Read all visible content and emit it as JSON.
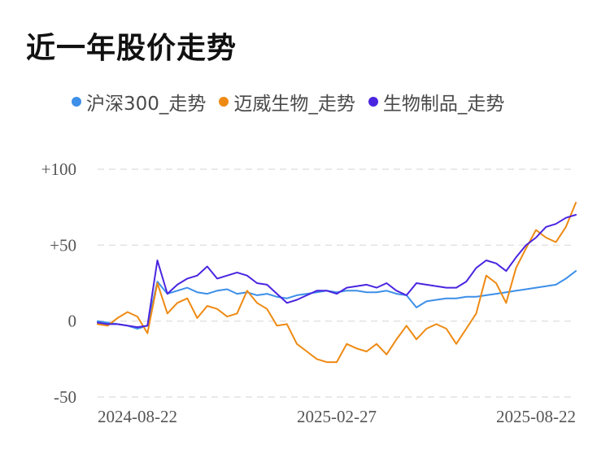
{
  "chart_data": {
    "type": "line",
    "title": "近一年股价走势",
    "xlabel": "",
    "ylabel": "",
    "ylim": [
      -50,
      100
    ],
    "yticks": [
      {
        "value": 100,
        "label": "+100"
      },
      {
        "value": 50,
        "label": "+50"
      },
      {
        "value": 0,
        "label": "0"
      },
      {
        "value": -50,
        "label": "-50"
      }
    ],
    "xticks": [
      {
        "index": 0,
        "label": "2024-08-22"
      },
      {
        "index": 24,
        "label": "2025-02-27"
      },
      {
        "index": 48,
        "label": "2025-08-22"
      }
    ],
    "grid": true,
    "legend_position": "top",
    "series": [
      {
        "name": "沪深300_走势",
        "color": "#3d8fe8",
        "values": [
          0,
          -1,
          -2,
          -3,
          -5,
          -3,
          26,
          18,
          20,
          22,
          19,
          18,
          20,
          21,
          18,
          19,
          17,
          18,
          16,
          15,
          17,
          18,
          19,
          20,
          19,
          20,
          20,
          19,
          19,
          20,
          18,
          17,
          9,
          13,
          14,
          15,
          15,
          16,
          16,
          17,
          18,
          19,
          20,
          21,
          22,
          23,
          24,
          28,
          33
        ]
      },
      {
        "name": "迈威生物_走势",
        "color": "#ee8a13",
        "values": [
          -2,
          -3,
          2,
          6,
          3,
          -8,
          25,
          5,
          12,
          15,
          2,
          10,
          8,
          3,
          5,
          20,
          12,
          8,
          -3,
          -2,
          -15,
          -20,
          -25,
          -27,
          -27,
          -15,
          -18,
          -20,
          -15,
          -22,
          -12,
          -3,
          -12,
          -5,
          -2,
          -5,
          -15,
          -5,
          5,
          30,
          25,
          12,
          35,
          48,
          60,
          55,
          52,
          62,
          78
        ]
      },
      {
        "name": "生物制品_走势",
        "color": "#4a25e0",
        "values": [
          -1,
          -2,
          -2,
          -3,
          -4,
          -3,
          40,
          18,
          24,
          28,
          30,
          36,
          28,
          30,
          32,
          30,
          25,
          24,
          18,
          12,
          14,
          17,
          20,
          20,
          18,
          22,
          23,
          24,
          22,
          25,
          20,
          17,
          25,
          24,
          23,
          22,
          22,
          26,
          35,
          40,
          38,
          33,
          42,
          50,
          55,
          62,
          64,
          68,
          70
        ]
      }
    ]
  }
}
